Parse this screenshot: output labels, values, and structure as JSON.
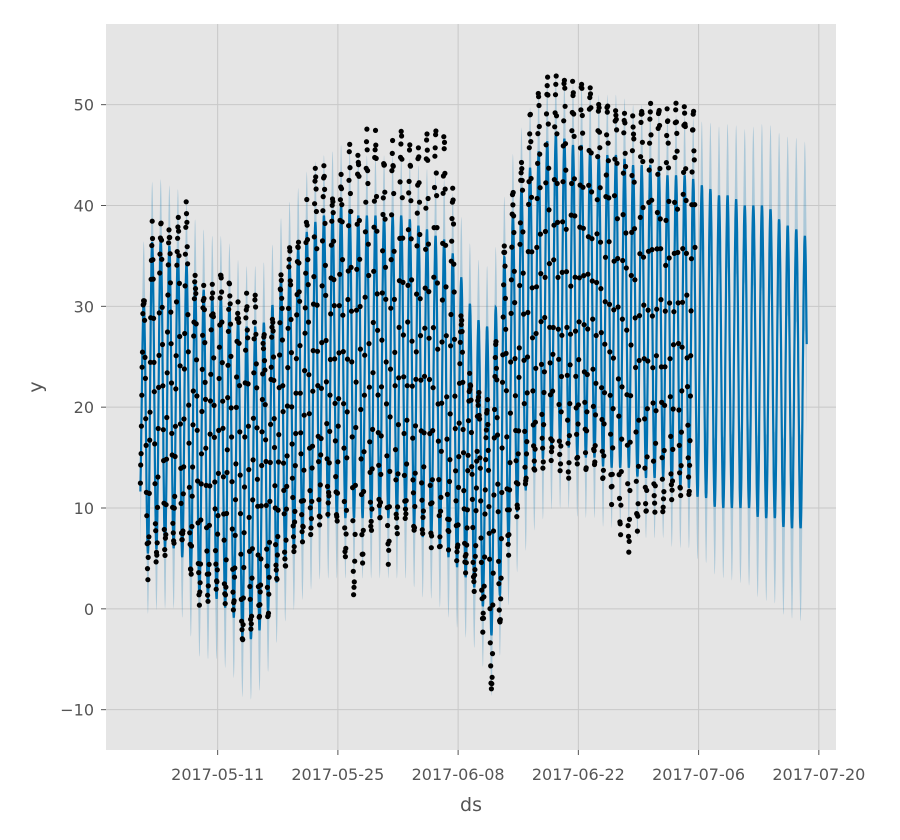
{
  "chart_data": {
    "type": "line",
    "title": "",
    "xlabel": "ds",
    "ylabel": "y",
    "xlim": [
      "2017-04-28",
      "2017-07-22"
    ],
    "ylim": [
      -14,
      58
    ],
    "x_ticks": [
      "2017-05-11",
      "2017-05-25",
      "2017-06-08",
      "2017-06-22",
      "2017-07-06",
      "2017-07-20"
    ],
    "y_ticks": [
      -10,
      0,
      10,
      20,
      30,
      40,
      50
    ],
    "grid": true,
    "legend": "none",
    "observed_range": [
      "2017-05-02",
      "2017-07-05"
    ],
    "forecast_end": "2017-07-18",
    "series": [
      {
        "kind": "observed",
        "style": "black dots",
        "color": "#000000",
        "daily_envelope": [
          {
            "x": "2017-05-02",
            "min": 10,
            "max": 27
          },
          {
            "x": "2017-05-03",
            "min": 3,
            "max": 37
          },
          {
            "x": "2017-05-04",
            "min": 5,
            "max": 38
          },
          {
            "x": "2017-05-05",
            "min": 6,
            "max": 39
          },
          {
            "x": "2017-05-06",
            "min": 7,
            "max": 36
          },
          {
            "x": "2017-05-07",
            "min": 6,
            "max": 43
          },
          {
            "x": "2017-05-08",
            "min": 3,
            "max": 35
          },
          {
            "x": "2017-05-09",
            "min": 0,
            "max": 31
          },
          {
            "x": "2017-05-10",
            "min": 1,
            "max": 31
          },
          {
            "x": "2017-05-11",
            "min": 2,
            "max": 34
          },
          {
            "x": "2017-05-12",
            "min": 1,
            "max": 33
          },
          {
            "x": "2017-05-13",
            "min": 0,
            "max": 31
          },
          {
            "x": "2017-05-14",
            "min": -4,
            "max": 29
          },
          {
            "x": "2017-05-15",
            "min": -2,
            "max": 33
          },
          {
            "x": "2017-05-16",
            "min": -1,
            "max": 27
          },
          {
            "x": "2017-05-17",
            "min": 0,
            "max": 28
          },
          {
            "x": "2017-05-18",
            "min": 3,
            "max": 32
          },
          {
            "x": "2017-05-19",
            "min": 5,
            "max": 35
          },
          {
            "x": "2017-05-20",
            "min": 6,
            "max": 36
          },
          {
            "x": "2017-05-21",
            "min": 7,
            "max": 38
          },
          {
            "x": "2017-05-22",
            "min": 8,
            "max": 42
          },
          {
            "x": "2017-05-23",
            "min": 9,
            "max": 45
          },
          {
            "x": "2017-05-24",
            "min": 10,
            "max": 41
          },
          {
            "x": "2017-05-25",
            "min": 9,
            "max": 42
          },
          {
            "x": "2017-05-26",
            "min": 4,
            "max": 45
          },
          {
            "x": "2017-05-27",
            "min": 1,
            "max": 45
          },
          {
            "x": "2017-05-28",
            "min": 6,
            "max": 46
          },
          {
            "x": "2017-05-29",
            "min": 8,
            "max": 48
          },
          {
            "x": "2017-05-30",
            "min": 9,
            "max": 44
          },
          {
            "x": "2017-05-31",
            "min": 4,
            "max": 44
          },
          {
            "x": "2017-06-01",
            "min": 8,
            "max": 48
          },
          {
            "x": "2017-06-02",
            "min": 9,
            "max": 46
          },
          {
            "x": "2017-06-03",
            "min": 8,
            "max": 45
          },
          {
            "x": "2017-06-04",
            "min": 8,
            "max": 46
          },
          {
            "x": "2017-06-05",
            "min": 7,
            "max": 47
          },
          {
            "x": "2017-06-06",
            "min": 6,
            "max": 47
          },
          {
            "x": "2017-06-07",
            "min": 6,
            "max": 46
          },
          {
            "x": "2017-06-08",
            "min": 5,
            "max": 33
          },
          {
            "x": "2017-06-09",
            "min": 4,
            "max": 23
          },
          {
            "x": "2017-06-10",
            "min": 2,
            "max": 22
          },
          {
            "x": "2017-06-11",
            "min": -2,
            "max": 20
          },
          {
            "x": "2017-06-12",
            "min": -8,
            "max": 21
          },
          {
            "x": "2017-06-13",
            "min": -1,
            "max": 33
          },
          {
            "x": "2017-06-14",
            "min": 7,
            "max": 40
          },
          {
            "x": "2017-06-15",
            "min": 10,
            "max": 43
          },
          {
            "x": "2017-06-16",
            "min": 12,
            "max": 48
          },
          {
            "x": "2017-06-17",
            "min": 14,
            "max": 50
          },
          {
            "x": "2017-06-18",
            "min": 15,
            "max": 52
          },
          {
            "x": "2017-06-19",
            "min": 15,
            "max": 53
          },
          {
            "x": "2017-06-20",
            "min": 14,
            "max": 52
          },
          {
            "x": "2017-06-21",
            "min": 14,
            "max": 52
          },
          {
            "x": "2017-06-22",
            "min": 15,
            "max": 52
          },
          {
            "x": "2017-06-23",
            "min": 14,
            "max": 52
          },
          {
            "x": "2017-06-24",
            "min": 14,
            "max": 51
          },
          {
            "x": "2017-06-25",
            "min": 13,
            "max": 49
          },
          {
            "x": "2017-06-26",
            "min": 11,
            "max": 50
          },
          {
            "x": "2017-06-27",
            "min": 7,
            "max": 50
          },
          {
            "x": "2017-06-28",
            "min": 6,
            "max": 48
          },
          {
            "x": "2017-06-29",
            "min": 8,
            "max": 50
          },
          {
            "x": "2017-06-30",
            "min": 9,
            "max": 50
          },
          {
            "x": "2017-07-01",
            "min": 10,
            "max": 50
          },
          {
            "x": "2017-07-02",
            "min": 10,
            "max": 49
          },
          {
            "x": "2017-07-03",
            "min": 11,
            "max": 50
          },
          {
            "x": "2017-07-04",
            "min": 11,
            "max": 50
          },
          {
            "x": "2017-07-05",
            "min": 12,
            "max": 49
          }
        ]
      },
      {
        "kind": "forecast",
        "style": "line",
        "color": "#0072B2",
        "daily_envelope": [
          {
            "x": "2017-05-02",
            "min": 9,
            "max": 27
          },
          {
            "x": "2017-05-03",
            "min": 5,
            "max": 36
          },
          {
            "x": "2017-05-04",
            "min": 6,
            "max": 37
          },
          {
            "x": "2017-05-05",
            "min": 6,
            "max": 36
          },
          {
            "x": "2017-05-06",
            "min": 6,
            "max": 36
          },
          {
            "x": "2017-05-07",
            "min": 5,
            "max": 35
          },
          {
            "x": "2017-05-08",
            "min": 3,
            "max": 33
          },
          {
            "x": "2017-05-09",
            "min": 1,
            "max": 32
          },
          {
            "x": "2017-05-10",
            "min": 1,
            "max": 31
          },
          {
            "x": "2017-05-11",
            "min": 1,
            "max": 31
          },
          {
            "x": "2017-05-12",
            "min": 0,
            "max": 31
          },
          {
            "x": "2017-05-13",
            "min": -1,
            "max": 29
          },
          {
            "x": "2017-05-14",
            "min": -3,
            "max": 28
          },
          {
            "x": "2017-05-15",
            "min": -3,
            "max": 28
          },
          {
            "x": "2017-05-16",
            "min": -2,
            "max": 28
          },
          {
            "x": "2017-05-17",
            "min": 0,
            "max": 29
          },
          {
            "x": "2017-05-18",
            "min": 3,
            "max": 32
          },
          {
            "x": "2017-05-19",
            "min": 5,
            "max": 34
          },
          {
            "x": "2017-05-20",
            "min": 6,
            "max": 35
          },
          {
            "x": "2017-05-21",
            "min": 7,
            "max": 37
          },
          {
            "x": "2017-05-22",
            "min": 8,
            "max": 38
          },
          {
            "x": "2017-05-23",
            "min": 9,
            "max": 39
          },
          {
            "x": "2017-05-24",
            "min": 9,
            "max": 39
          },
          {
            "x": "2017-05-25",
            "min": 9,
            "max": 40
          },
          {
            "x": "2017-05-26",
            "min": 9,
            "max": 40
          },
          {
            "x": "2017-05-27",
            "min": 9,
            "max": 39
          },
          {
            "x": "2017-05-28",
            "min": 9,
            "max": 39
          },
          {
            "x": "2017-05-29",
            "min": 9,
            "max": 39
          },
          {
            "x": "2017-05-30",
            "min": 9,
            "max": 39
          },
          {
            "x": "2017-05-31",
            "min": 9,
            "max": 39
          },
          {
            "x": "2017-06-01",
            "min": 9,
            "max": 39
          },
          {
            "x": "2017-06-02",
            "min": 9,
            "max": 39
          },
          {
            "x": "2017-06-03",
            "min": 8,
            "max": 38
          },
          {
            "x": "2017-06-04",
            "min": 7,
            "max": 38
          },
          {
            "x": "2017-06-05",
            "min": 7,
            "max": 37
          },
          {
            "x": "2017-06-06",
            "min": 6,
            "max": 37
          },
          {
            "x": "2017-06-07",
            "min": 5,
            "max": 36
          },
          {
            "x": "2017-06-08",
            "min": 4,
            "max": 34
          },
          {
            "x": "2017-06-09",
            "min": 3,
            "max": 31
          },
          {
            "x": "2017-06-10",
            "min": 2,
            "max": 29
          },
          {
            "x": "2017-06-11",
            "min": 0,
            "max": 28
          },
          {
            "x": "2017-06-12",
            "min": -3,
            "max": 28
          },
          {
            "x": "2017-06-13",
            "min": 2,
            "max": 33
          },
          {
            "x": "2017-06-14",
            "min": 7,
            "max": 38
          },
          {
            "x": "2017-06-15",
            "min": 10,
            "max": 41
          },
          {
            "x": "2017-06-16",
            "min": 12,
            "max": 43
          },
          {
            "x": "2017-06-17",
            "min": 14,
            "max": 45
          },
          {
            "x": "2017-06-18",
            "min": 15,
            "max": 46
          },
          {
            "x": "2017-06-19",
            "min": 16,
            "max": 47
          },
          {
            "x": "2017-06-20",
            "min": 16,
            "max": 47
          },
          {
            "x": "2017-06-21",
            "min": 16,
            "max": 46
          },
          {
            "x": "2017-06-22",
            "min": 15,
            "max": 46
          },
          {
            "x": "2017-06-23",
            "min": 15,
            "max": 46
          },
          {
            "x": "2017-06-24",
            "min": 15,
            "max": 45
          },
          {
            "x": "2017-06-25",
            "min": 14,
            "max": 45
          },
          {
            "x": "2017-06-26",
            "min": 14,
            "max": 45
          },
          {
            "x": "2017-06-27",
            "min": 14,
            "max": 45
          },
          {
            "x": "2017-06-28",
            "min": 14,
            "max": 44
          },
          {
            "x": "2017-06-29",
            "min": 13,
            "max": 44
          },
          {
            "x": "2017-06-30",
            "min": 13,
            "max": 44
          },
          {
            "x": "2017-07-01",
            "min": 13,
            "max": 44
          },
          {
            "x": "2017-07-02",
            "min": 13,
            "max": 43
          },
          {
            "x": "2017-07-03",
            "min": 12,
            "max": 43
          },
          {
            "x": "2017-07-04",
            "min": 12,
            "max": 43
          },
          {
            "x": "2017-07-05",
            "min": 12,
            "max": 43
          },
          {
            "x": "2017-07-06",
            "min": 11,
            "max": 42
          },
          {
            "x": "2017-07-07",
            "min": 11,
            "max": 42
          },
          {
            "x": "2017-07-08",
            "min": 10,
            "max": 41
          },
          {
            "x": "2017-07-09",
            "min": 10,
            "max": 41
          },
          {
            "x": "2017-07-10",
            "min": 10,
            "max": 41
          },
          {
            "x": "2017-07-11",
            "min": 10,
            "max": 40
          },
          {
            "x": "2017-07-12",
            "min": 10,
            "max": 40
          },
          {
            "x": "2017-07-13",
            "min": 9,
            "max": 40
          },
          {
            "x": "2017-07-14",
            "min": 9,
            "max": 40
          },
          {
            "x": "2017-07-15",
            "min": 9,
            "max": 39
          },
          {
            "x": "2017-07-16",
            "min": 8,
            "max": 38
          },
          {
            "x": "2017-07-17",
            "min": 8,
            "max": 38
          },
          {
            "x": "2017-07-18",
            "min": 8,
            "max": 37
          }
        ]
      },
      {
        "kind": "uncertainty_interval",
        "style": "shaded band",
        "color": "#0072B2",
        "opacity": 0.25,
        "half_width": 6
      }
    ]
  }
}
